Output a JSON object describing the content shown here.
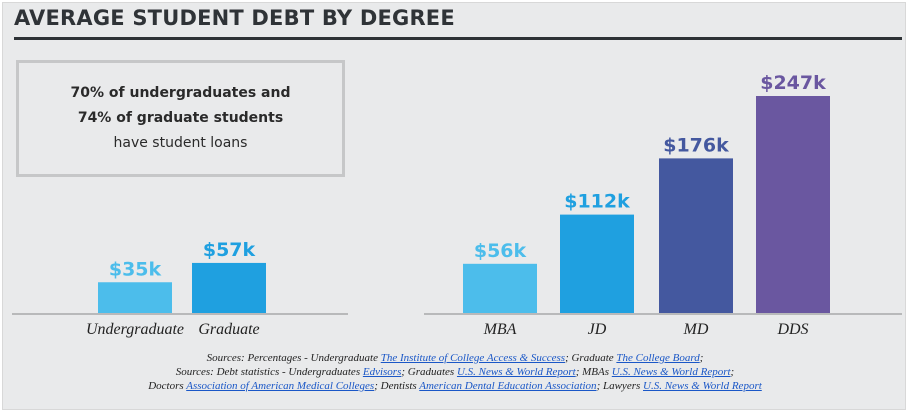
{
  "title": "AVERAGE STUDENT DEBT BY DEGREE",
  "callout": {
    "line1": "70% of undergraduates and",
    "line2": "74% of graduate students",
    "line3": "have student loans"
  },
  "colors": {
    "light_blue": "#4cbdeb",
    "mid_blue": "#1fa0e0",
    "navy": "#44589f",
    "purple": "#6a57a0",
    "baseline": "#b8b9ba"
  },
  "chart_data": [
    {
      "type": "bar",
      "categories": [
        "Undergraduate",
        "Graduate"
      ],
      "values": [
        35,
        57
      ],
      "data_labels": [
        "$35k",
        "$57k"
      ],
      "unit": "thousand USD",
      "colors": [
        "#4cbdeb",
        "#1fa0e0"
      ],
      "grid": false
    },
    {
      "type": "bar",
      "categories": [
        "MBA",
        "JD",
        "MD",
        "DDS"
      ],
      "values": [
        56,
        112,
        176,
        247
      ],
      "data_labels": [
        "$56k",
        "$112k",
        "$176k",
        "$247k"
      ],
      "unit": "thousand USD",
      "colors": [
        "#4cbdeb",
        "#1fa0e0",
        "#44589f",
        "#6a57a0"
      ],
      "grid": false
    }
  ],
  "sources": {
    "line1_prefix": "Sources: Percentages - Undergraduate ",
    "line1_link1": "The Institute of College Access & Success",
    "line1_mid": "; Graduate ",
    "line1_link2": "The College Board",
    "line1_end": ";",
    "line2_prefix": "Sources: Debt statistics - Undergraduates ",
    "line2_link1": "Edvisors",
    "line2_mid1": "; Graduates ",
    "line2_link2": "U.S. News & World Report",
    "line2_mid2": "; MBAs ",
    "line2_link3": "U.S. News & World Report",
    "line2_end": ";",
    "line3_prefix": "Doctors ",
    "line3_link1": "Association of American Medical Colleges",
    "line3_mid1": "; Dentists ",
    "line3_link2": "American Dental Education Association",
    "line3_mid2": "; Lawyers ",
    "line3_link3": "U.S. News & World Report"
  }
}
